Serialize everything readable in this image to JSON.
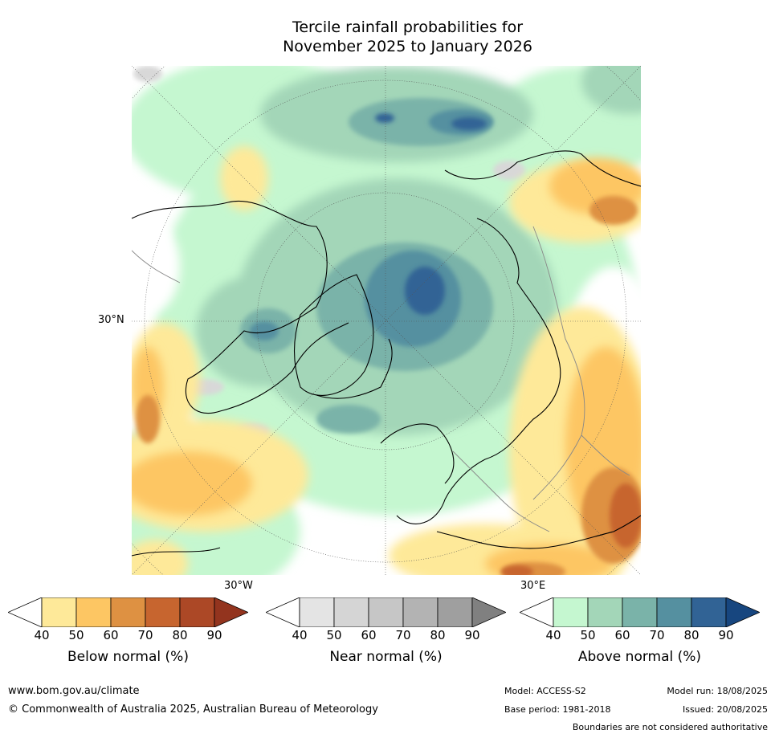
{
  "title": {
    "line1": "Tercile rainfall probabilities for",
    "line2": "November 2025 to January 2026"
  },
  "map": {
    "lat_label": "30°N",
    "lon_label_left": "30°W",
    "lon_label_right": "30°E"
  },
  "colorbars": [
    {
      "name": "below",
      "label": "Below normal (%)",
      "ticks": [
        "40",
        "50",
        "60",
        "70",
        "80",
        "90"
      ],
      "colors": [
        "#ffffff",
        "#fee999",
        "#fdc663",
        "#de9142",
        "#c7652f",
        "#ac4826",
        "#93341e"
      ]
    },
    {
      "name": "near",
      "label": "Near normal (%)",
      "ticks": [
        "40",
        "50",
        "60",
        "70",
        "80",
        "90"
      ],
      "colors": [
        "#ffffff",
        "#e4e4e4",
        "#d5d5d5",
        "#c6c6c6",
        "#b3b3b3",
        "#9f9f9f",
        "#808080"
      ]
    },
    {
      "name": "above",
      "label": "Above normal (%)",
      "ticks": [
        "40",
        "50",
        "60",
        "70",
        "80",
        "90"
      ],
      "colors": [
        "#ffffff",
        "#c5f7d0",
        "#a3d6b8",
        "#7ab3a9",
        "#5590a0",
        "#316395",
        "#17467f"
      ]
    }
  ],
  "footer": {
    "url": "www.bom.gov.au/climate",
    "copyright": "© Commonwealth of Australia 2025, Australian Bureau of Meteorology",
    "model": "Model: ACCESS-S2",
    "base_period": "Base period: 1981-2018",
    "model_run": "Model run: 18/08/2025",
    "issued": "Issued: 20/08/2025",
    "disclaimer": "Boundaries are not considered authoritative"
  }
}
